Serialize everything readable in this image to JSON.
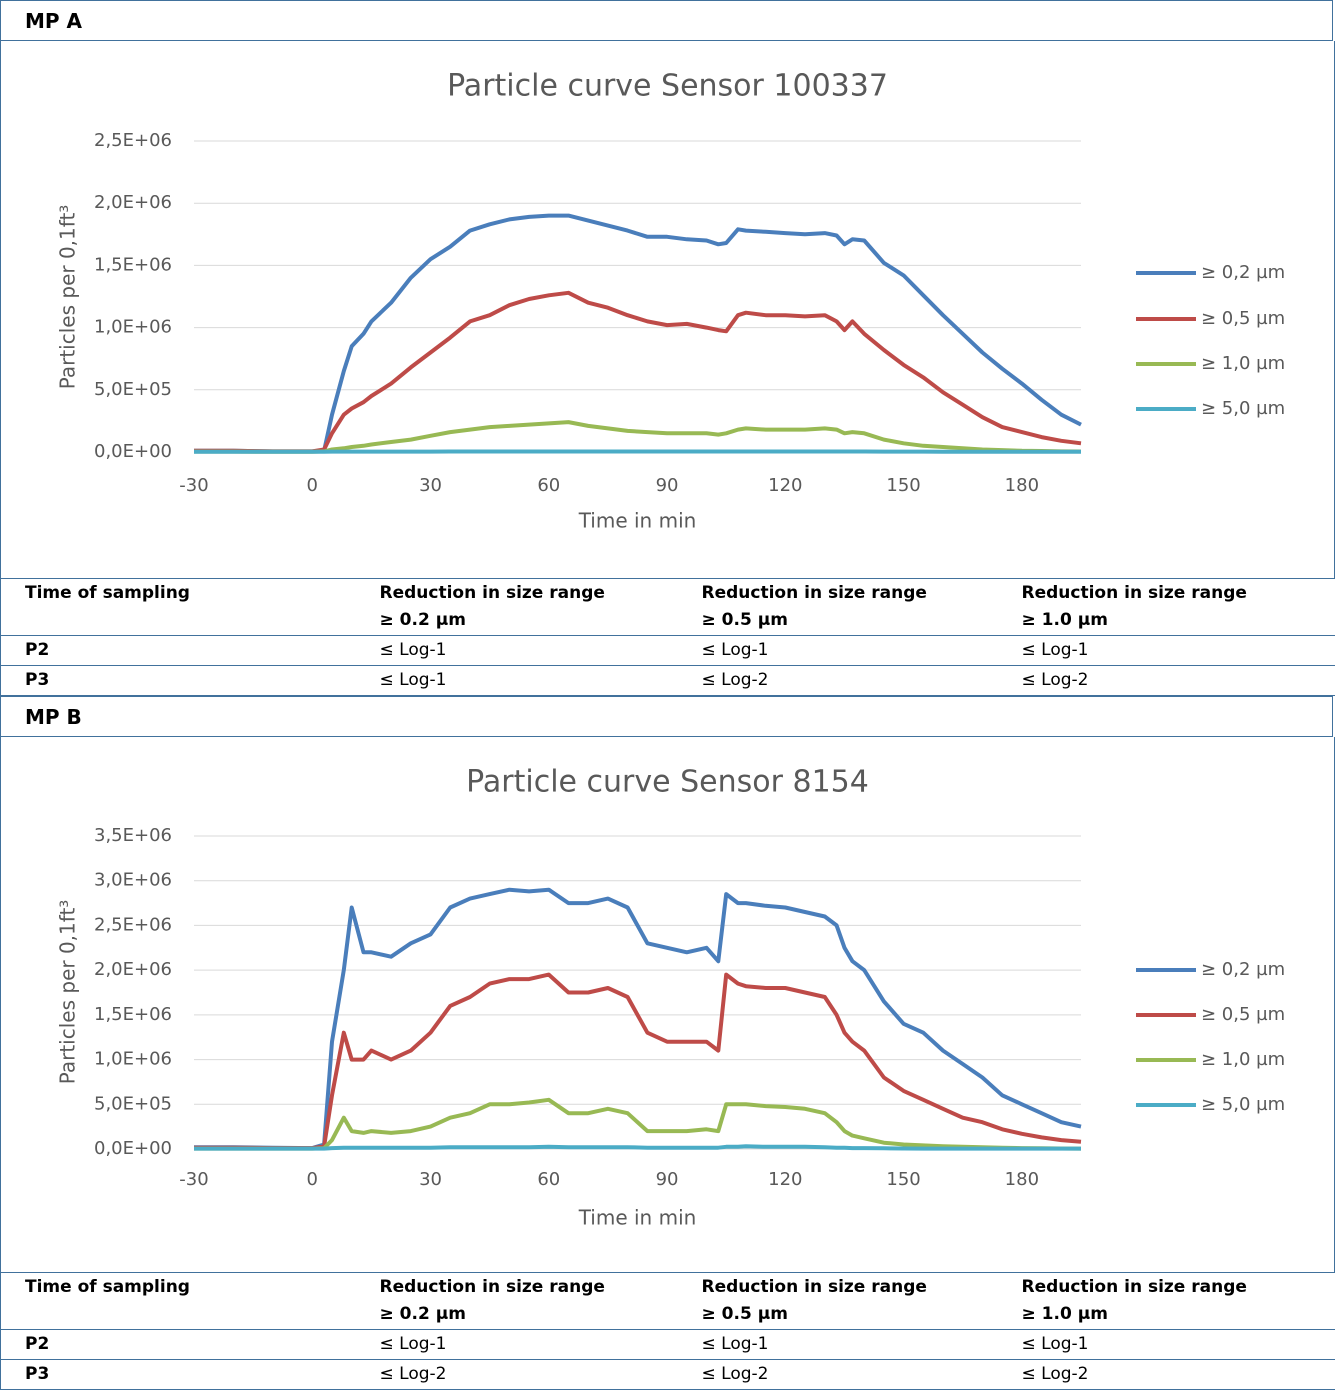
{
  "sections": [
    {
      "label": "MP A",
      "table": {
        "header": [
          "Time of sampling",
          "Reduction in size range\n≥ 0.2 µm",
          "Reduction in size range\n≥ 0.5 µm",
          "Reduction in size range\n≥ 1.0 µm"
        ],
        "rows": [
          [
            "P2",
            "≤ Log-1",
            "≤ Log-1",
            "≤ Log-1"
          ],
          [
            "P3",
            "≤ Log-1",
            "≤ Log-2",
            "≤ Log-2"
          ]
        ]
      }
    },
    {
      "label": "MP B",
      "table": {
        "header": [
          "Time of sampling",
          "Reduction in size range\n≥ 0.2 µm",
          "Reduction in size range\n≥ 0.5 µm",
          "Reduction in size range\n≥ 1.0 µm"
        ],
        "rows": [
          [
            "P2",
            "≤ Log-1",
            "≤ Log-1",
            "≤ Log-1"
          ],
          [
            "P3",
            "≤ Log-2",
            "≤ Log-2",
            "≤ Log-2"
          ]
        ]
      }
    }
  ],
  "chart_data": [
    {
      "type": "line",
      "title": "Particle curve Sensor 100337",
      "x_label": "Time in min",
      "y_label": "Particles per 0,1ft³",
      "x": [
        -30,
        -20,
        -10,
        0,
        3,
        5,
        8,
        10,
        13,
        15,
        20,
        25,
        30,
        35,
        40,
        45,
        50,
        55,
        60,
        65,
        70,
        75,
        80,
        85,
        90,
        95,
        100,
        103,
        105,
        108,
        110,
        115,
        120,
        125,
        130,
        133,
        135,
        137,
        140,
        145,
        150,
        155,
        160,
        165,
        170,
        175,
        180,
        185,
        190,
        195
      ],
      "xlim": [
        -30,
        195
      ],
      "xticks": [
        -30,
        0,
        30,
        60,
        90,
        120,
        150,
        180
      ],
      "ylim": [
        0,
        2500000
      ],
      "yticks": [
        {
          "value": 0,
          "label": "0,0E+00"
        },
        {
          "value": 500000,
          "label": "5,0E+05"
        },
        {
          "value": 1000000,
          "label": "1,0E+06"
        },
        {
          "value": 1500000,
          "label": "1,5E+06"
        },
        {
          "value": 2000000,
          "label": "2,0E+06"
        },
        {
          "value": 2500000,
          "label": "2,5E+06"
        }
      ],
      "grid": true,
      "legend": "right",
      "series": [
        {
          "name": "≥ 0,2 µm",
          "color": "#4a7ebb",
          "values": [
            10000,
            10000,
            5000,
            5000,
            10000,
            300000,
            650000,
            850000,
            950000,
            1050000,
            1200000,
            1400000,
            1550000,
            1650000,
            1780000,
            1830000,
            1870000,
            1890000,
            1900000,
            1900000,
            1860000,
            1820000,
            1780000,
            1730000,
            1730000,
            1710000,
            1700000,
            1670000,
            1680000,
            1790000,
            1780000,
            1770000,
            1760000,
            1750000,
            1760000,
            1740000,
            1670000,
            1710000,
            1700000,
            1520000,
            1420000,
            1260000,
            1100000,
            950000,
            800000,
            670000,
            550000,
            420000,
            300000,
            220000
          ]
        },
        {
          "name": "≥ 0,5 µm",
          "color": "#be4b48",
          "values": [
            10000,
            10000,
            5000,
            5000,
            20000,
            150000,
            300000,
            350000,
            400000,
            450000,
            550000,
            680000,
            800000,
            920000,
            1050000,
            1100000,
            1180000,
            1230000,
            1260000,
            1280000,
            1200000,
            1160000,
            1100000,
            1050000,
            1020000,
            1030000,
            1000000,
            980000,
            970000,
            1100000,
            1120000,
            1100000,
            1100000,
            1090000,
            1100000,
            1050000,
            980000,
            1050000,
            950000,
            820000,
            700000,
            600000,
            480000,
            380000,
            280000,
            200000,
            160000,
            120000,
            90000,
            70000
          ]
        },
        {
          "name": "≥ 1,0 µm",
          "color": "#98b954",
          "values": [
            3000,
            3000,
            2000,
            2000,
            5000,
            20000,
            30000,
            40000,
            50000,
            60000,
            80000,
            100000,
            130000,
            160000,
            180000,
            200000,
            210000,
            220000,
            230000,
            240000,
            210000,
            190000,
            170000,
            160000,
            150000,
            150000,
            150000,
            140000,
            150000,
            180000,
            190000,
            180000,
            180000,
            180000,
            190000,
            180000,
            150000,
            160000,
            150000,
            100000,
            70000,
            50000,
            40000,
            30000,
            20000,
            15000,
            10000,
            8000,
            5000,
            4000
          ]
        },
        {
          "name": "≥ 5,0 µm",
          "color": "#4bacc6",
          "values": [
            2000,
            2000,
            2000,
            2000,
            2000,
            3000,
            3000,
            3000,
            3000,
            3000,
            3000,
            3000,
            3000,
            4000,
            4000,
            4000,
            4000,
            4000,
            4000,
            4000,
            4000,
            4000,
            4000,
            4000,
            4000,
            4000,
            4000,
            4000,
            4000,
            4000,
            4000,
            4000,
            4000,
            4000,
            4000,
            4000,
            4000,
            4000,
            4000,
            3000,
            3000,
            3000,
            2000,
            2000,
            2000,
            2000,
            2000,
            2000,
            2000,
            2000
          ]
        }
      ]
    },
    {
      "type": "line",
      "title": "Particle curve Sensor 8154",
      "x_label": "Time in min",
      "y_label": "Particles per 0,1ft³",
      "x": [
        -30,
        -20,
        -10,
        0,
        3,
        5,
        8,
        10,
        13,
        15,
        20,
        25,
        30,
        35,
        40,
        45,
        50,
        55,
        60,
        65,
        70,
        75,
        80,
        85,
        90,
        95,
        100,
        103,
        105,
        108,
        110,
        115,
        120,
        125,
        130,
        133,
        135,
        137,
        140,
        145,
        150,
        155,
        160,
        165,
        170,
        175,
        180,
        185,
        190,
        195
      ],
      "xlim": [
        -30,
        195
      ],
      "xticks": [
        -30,
        0,
        30,
        60,
        90,
        120,
        150,
        180
      ],
      "ylim": [
        0,
        3500000
      ],
      "yticks": [
        {
          "value": 0,
          "label": "0,0E+00"
        },
        {
          "value": 500000,
          "label": "5,0E+05"
        },
        {
          "value": 1000000,
          "label": "1,0E+06"
        },
        {
          "value": 1500000,
          "label": "1,5E+06"
        },
        {
          "value": 2000000,
          "label": "2,0E+06"
        },
        {
          "value": 2500000,
          "label": "2,5E+06"
        },
        {
          "value": 3000000,
          "label": "3,0E+06"
        },
        {
          "value": 3500000,
          "label": "3,5E+06"
        }
      ],
      "grid": true,
      "legend": "right",
      "series": [
        {
          "name": "≥ 0,2 µm",
          "color": "#4a7ebb",
          "values": [
            20000,
            20000,
            15000,
            10000,
            50000,
            1200000,
            2000000,
            2700000,
            2200000,
            2200000,
            2150000,
            2300000,
            2400000,
            2700000,
            2800000,
            2850000,
            2900000,
            2880000,
            2900000,
            2750000,
            2750000,
            2800000,
            2700000,
            2300000,
            2250000,
            2200000,
            2250000,
            2100000,
            2850000,
            2750000,
            2750000,
            2720000,
            2700000,
            2650000,
            2600000,
            2500000,
            2250000,
            2100000,
            2000000,
            1650000,
            1400000,
            1300000,
            1100000,
            950000,
            800000,
            600000,
            500000,
            400000,
            300000,
            250000
          ]
        },
        {
          "name": "≥ 0,5 µm",
          "color": "#be4b48",
          "values": [
            15000,
            15000,
            10000,
            10000,
            30000,
            600000,
            1300000,
            1000000,
            1000000,
            1100000,
            1000000,
            1100000,
            1300000,
            1600000,
            1700000,
            1850000,
            1900000,
            1900000,
            1950000,
            1750000,
            1750000,
            1800000,
            1700000,
            1300000,
            1200000,
            1200000,
            1200000,
            1100000,
            1950000,
            1850000,
            1820000,
            1800000,
            1800000,
            1750000,
            1700000,
            1500000,
            1300000,
            1200000,
            1100000,
            800000,
            650000,
            550000,
            450000,
            350000,
            300000,
            220000,
            170000,
            130000,
            100000,
            80000
          ]
        },
        {
          "name": "≥ 1,0 µm",
          "color": "#98b954",
          "values": [
            5000,
            5000,
            5000,
            5000,
            10000,
            100000,
            350000,
            200000,
            180000,
            200000,
            180000,
            200000,
            250000,
            350000,
            400000,
            500000,
            500000,
            520000,
            550000,
            400000,
            400000,
            450000,
            400000,
            200000,
            200000,
            200000,
            220000,
            200000,
            500000,
            500000,
            500000,
            480000,
            470000,
            450000,
            400000,
            300000,
            200000,
            150000,
            120000,
            70000,
            50000,
            40000,
            30000,
            25000,
            20000,
            15000,
            10000,
            8000,
            6000,
            5000
          ]
        },
        {
          "name": "≥ 5,0 µm",
          "color": "#4bacc6",
          "values": [
            5000,
            5000,
            5000,
            5000,
            5000,
            10000,
            15000,
            15000,
            15000,
            15000,
            15000,
            15000,
            15000,
            20000,
            20000,
            20000,
            20000,
            20000,
            25000,
            20000,
            20000,
            20000,
            20000,
            15000,
            15000,
            15000,
            15000,
            15000,
            25000,
            25000,
            30000,
            25000,
            25000,
            25000,
            20000,
            15000,
            15000,
            10000,
            10000,
            8000,
            6000,
            5000,
            5000,
            5000,
            5000,
            5000,
            5000,
            5000,
            5000,
            5000
          ]
        }
      ]
    }
  ]
}
